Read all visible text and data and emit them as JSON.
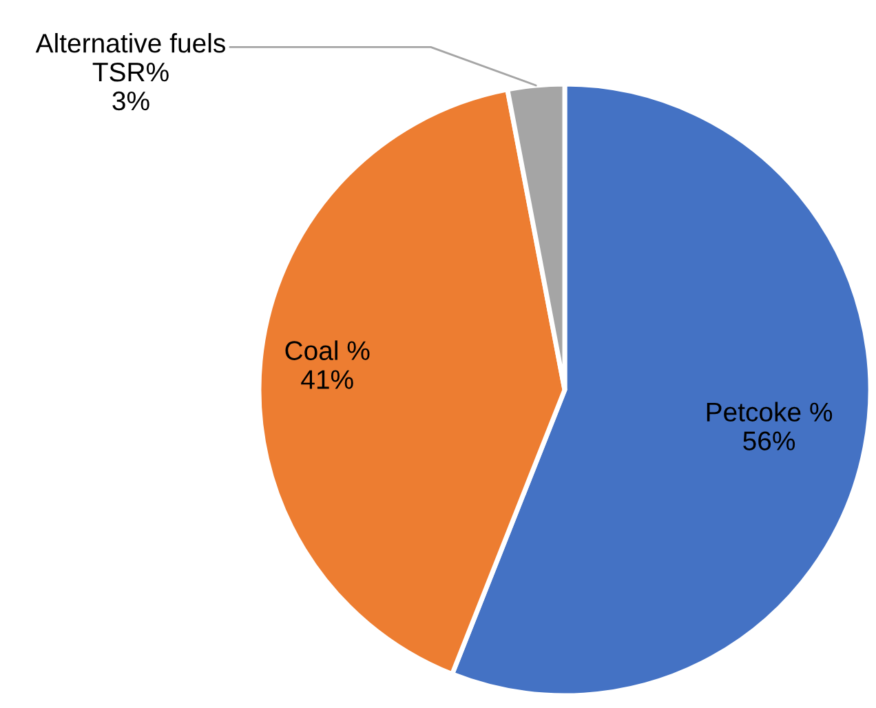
{
  "chart_data": {
    "type": "pie",
    "categories": [
      "Petcoke %",
      "Coal %",
      "Alternative fuels\nTSR%"
    ],
    "values": [
      56,
      41,
      3
    ],
    "colors": [
      "#4472c4",
      "#ed7d31",
      "#a5a5a5"
    ],
    "value_labels": [
      "56%",
      "41%",
      "3%"
    ]
  }
}
